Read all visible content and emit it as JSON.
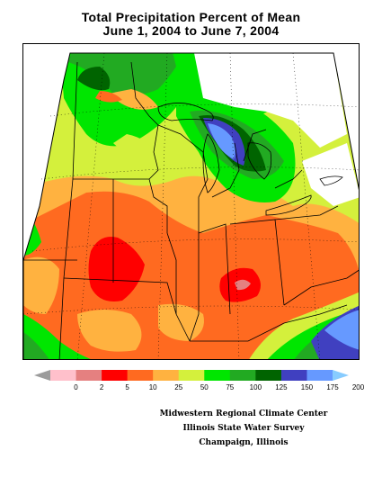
{
  "title": {
    "line1": "Total Precipitation Percent of Mean",
    "line2": "June 1, 2004 to June 7, 2004"
  },
  "legend": {
    "ticks": [
      "0",
      "2",
      "5",
      "10",
      "25",
      "50",
      "75",
      "100",
      "125",
      "150",
      "175",
      "200"
    ],
    "colors": [
      "#9c9c9c",
      "#ffc0cb",
      "#e58080",
      "#ff0000",
      "#ff6a20",
      "#ffb240",
      "#d4f03c",
      "#00e600",
      "#22aa22",
      "#006400",
      "#4040c0",
      "#6699ff",
      "#88ccff"
    ]
  },
  "credits": {
    "line1": "Midwestern Regional Climate Center",
    "line2": "Illinois State Water Survey",
    "line3": "Champaign, Illinois"
  }
}
